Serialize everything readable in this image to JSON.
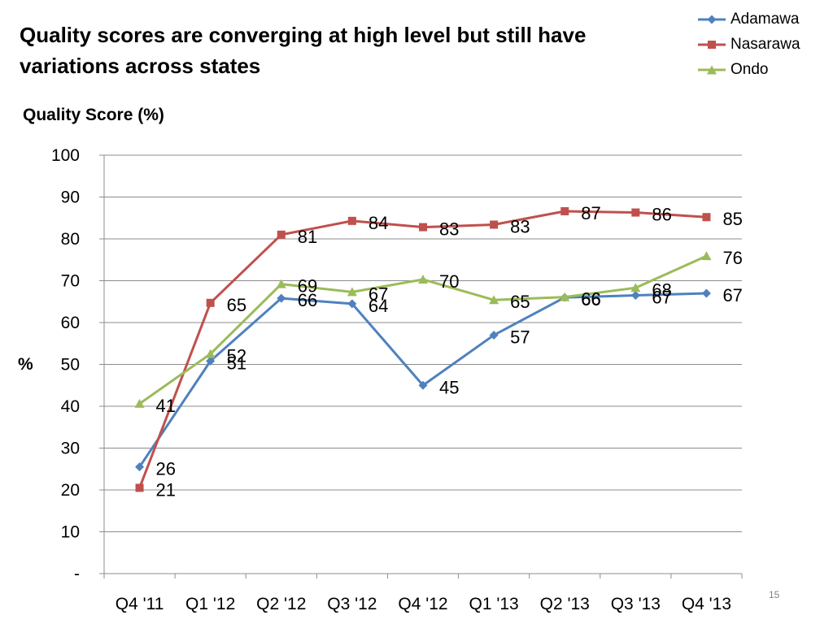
{
  "slide": {
    "title": "Quality scores are converging at high level but still have variations across states",
    "page_number": "15"
  },
  "chart_data": {
    "type": "line",
    "title": "Quality Score (%)",
    "xlabel": "",
    "ylabel": "%",
    "categories": [
      "Q4 '11",
      "Q1 '12",
      "Q2 '12",
      "Q3 '12",
      "Q4 '12",
      "Q1 '13",
      "Q2 '13",
      "Q3 '13",
      "Q4 '13"
    ],
    "ylim": [
      0,
      100
    ],
    "yticks": [
      0,
      10,
      20,
      30,
      40,
      50,
      60,
      70,
      80,
      90,
      100
    ],
    "ytick_labels": [
      "-",
      "10",
      "20",
      "30",
      "40",
      "50",
      "60",
      "70",
      "80",
      "90",
      "100"
    ],
    "grid": true,
    "legend_position": "top-right",
    "series": [
      {
        "name": "Adamawa",
        "color": "#4F81BD",
        "marker": "diamond",
        "values": [
          25.5,
          50.8,
          65.8,
          64.5,
          45,
          57,
          66,
          66.5,
          67
        ],
        "labels": [
          "26",
          "51",
          "66",
          "64",
          "45",
          "57",
          "66",
          "67",
          "67"
        ]
      },
      {
        "name": "Nasarawa",
        "color": "#C0504D",
        "marker": "square",
        "values": [
          20.5,
          64.7,
          81,
          84.3,
          82.8,
          83.4,
          86.6,
          86.3,
          85.2
        ],
        "labels": [
          "21",
          "65",
          "81",
          "84",
          "83",
          "83",
          "87",
          "86",
          "85"
        ]
      },
      {
        "name": "Ondo",
        "color": "#9BBB59",
        "marker": "triangle",
        "values": [
          40.6,
          52.5,
          69.2,
          67.3,
          70.3,
          65.4,
          66.1,
          68.3,
          75.9
        ],
        "labels": [
          "41",
          "52",
          "69",
          "67",
          "70",
          "65",
          "66",
          "68",
          "76"
        ]
      }
    ]
  }
}
